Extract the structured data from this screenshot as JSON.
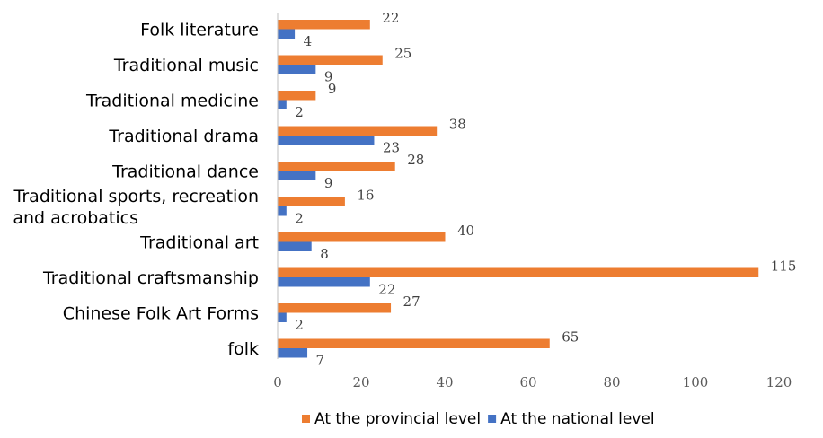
{
  "chart_data": {
    "type": "bar",
    "orientation": "horizontal",
    "categories": [
      [
        "Folk literature"
      ],
      [
        "Traditional music"
      ],
      [
        "Traditional medicine"
      ],
      [
        "Traditional drama"
      ],
      [
        "Traditional dance"
      ],
      [
        "Traditional sports, recreation",
        "and acrobatics"
      ],
      [
        "Traditional art"
      ],
      [
        "Traditional craftsmanship"
      ],
      [
        "Chinese Folk Art Forms"
      ],
      [
        "folk"
      ]
    ],
    "series": [
      {
        "name": "At the provincial level",
        "color": "#ED7D31",
        "values": [
          22,
          25,
          9,
          38,
          28,
          16,
          40,
          115,
          27,
          65
        ]
      },
      {
        "name": "At the national level",
        "color": "#4472C4",
        "values": [
          4,
          9,
          2,
          23,
          9,
          2,
          8,
          22,
          2,
          7
        ]
      }
    ],
    "xlim": [
      0,
      120
    ],
    "xticks": [
      0,
      20,
      40,
      60,
      80,
      100,
      120
    ],
    "grid": false,
    "legend": "bottom"
  }
}
